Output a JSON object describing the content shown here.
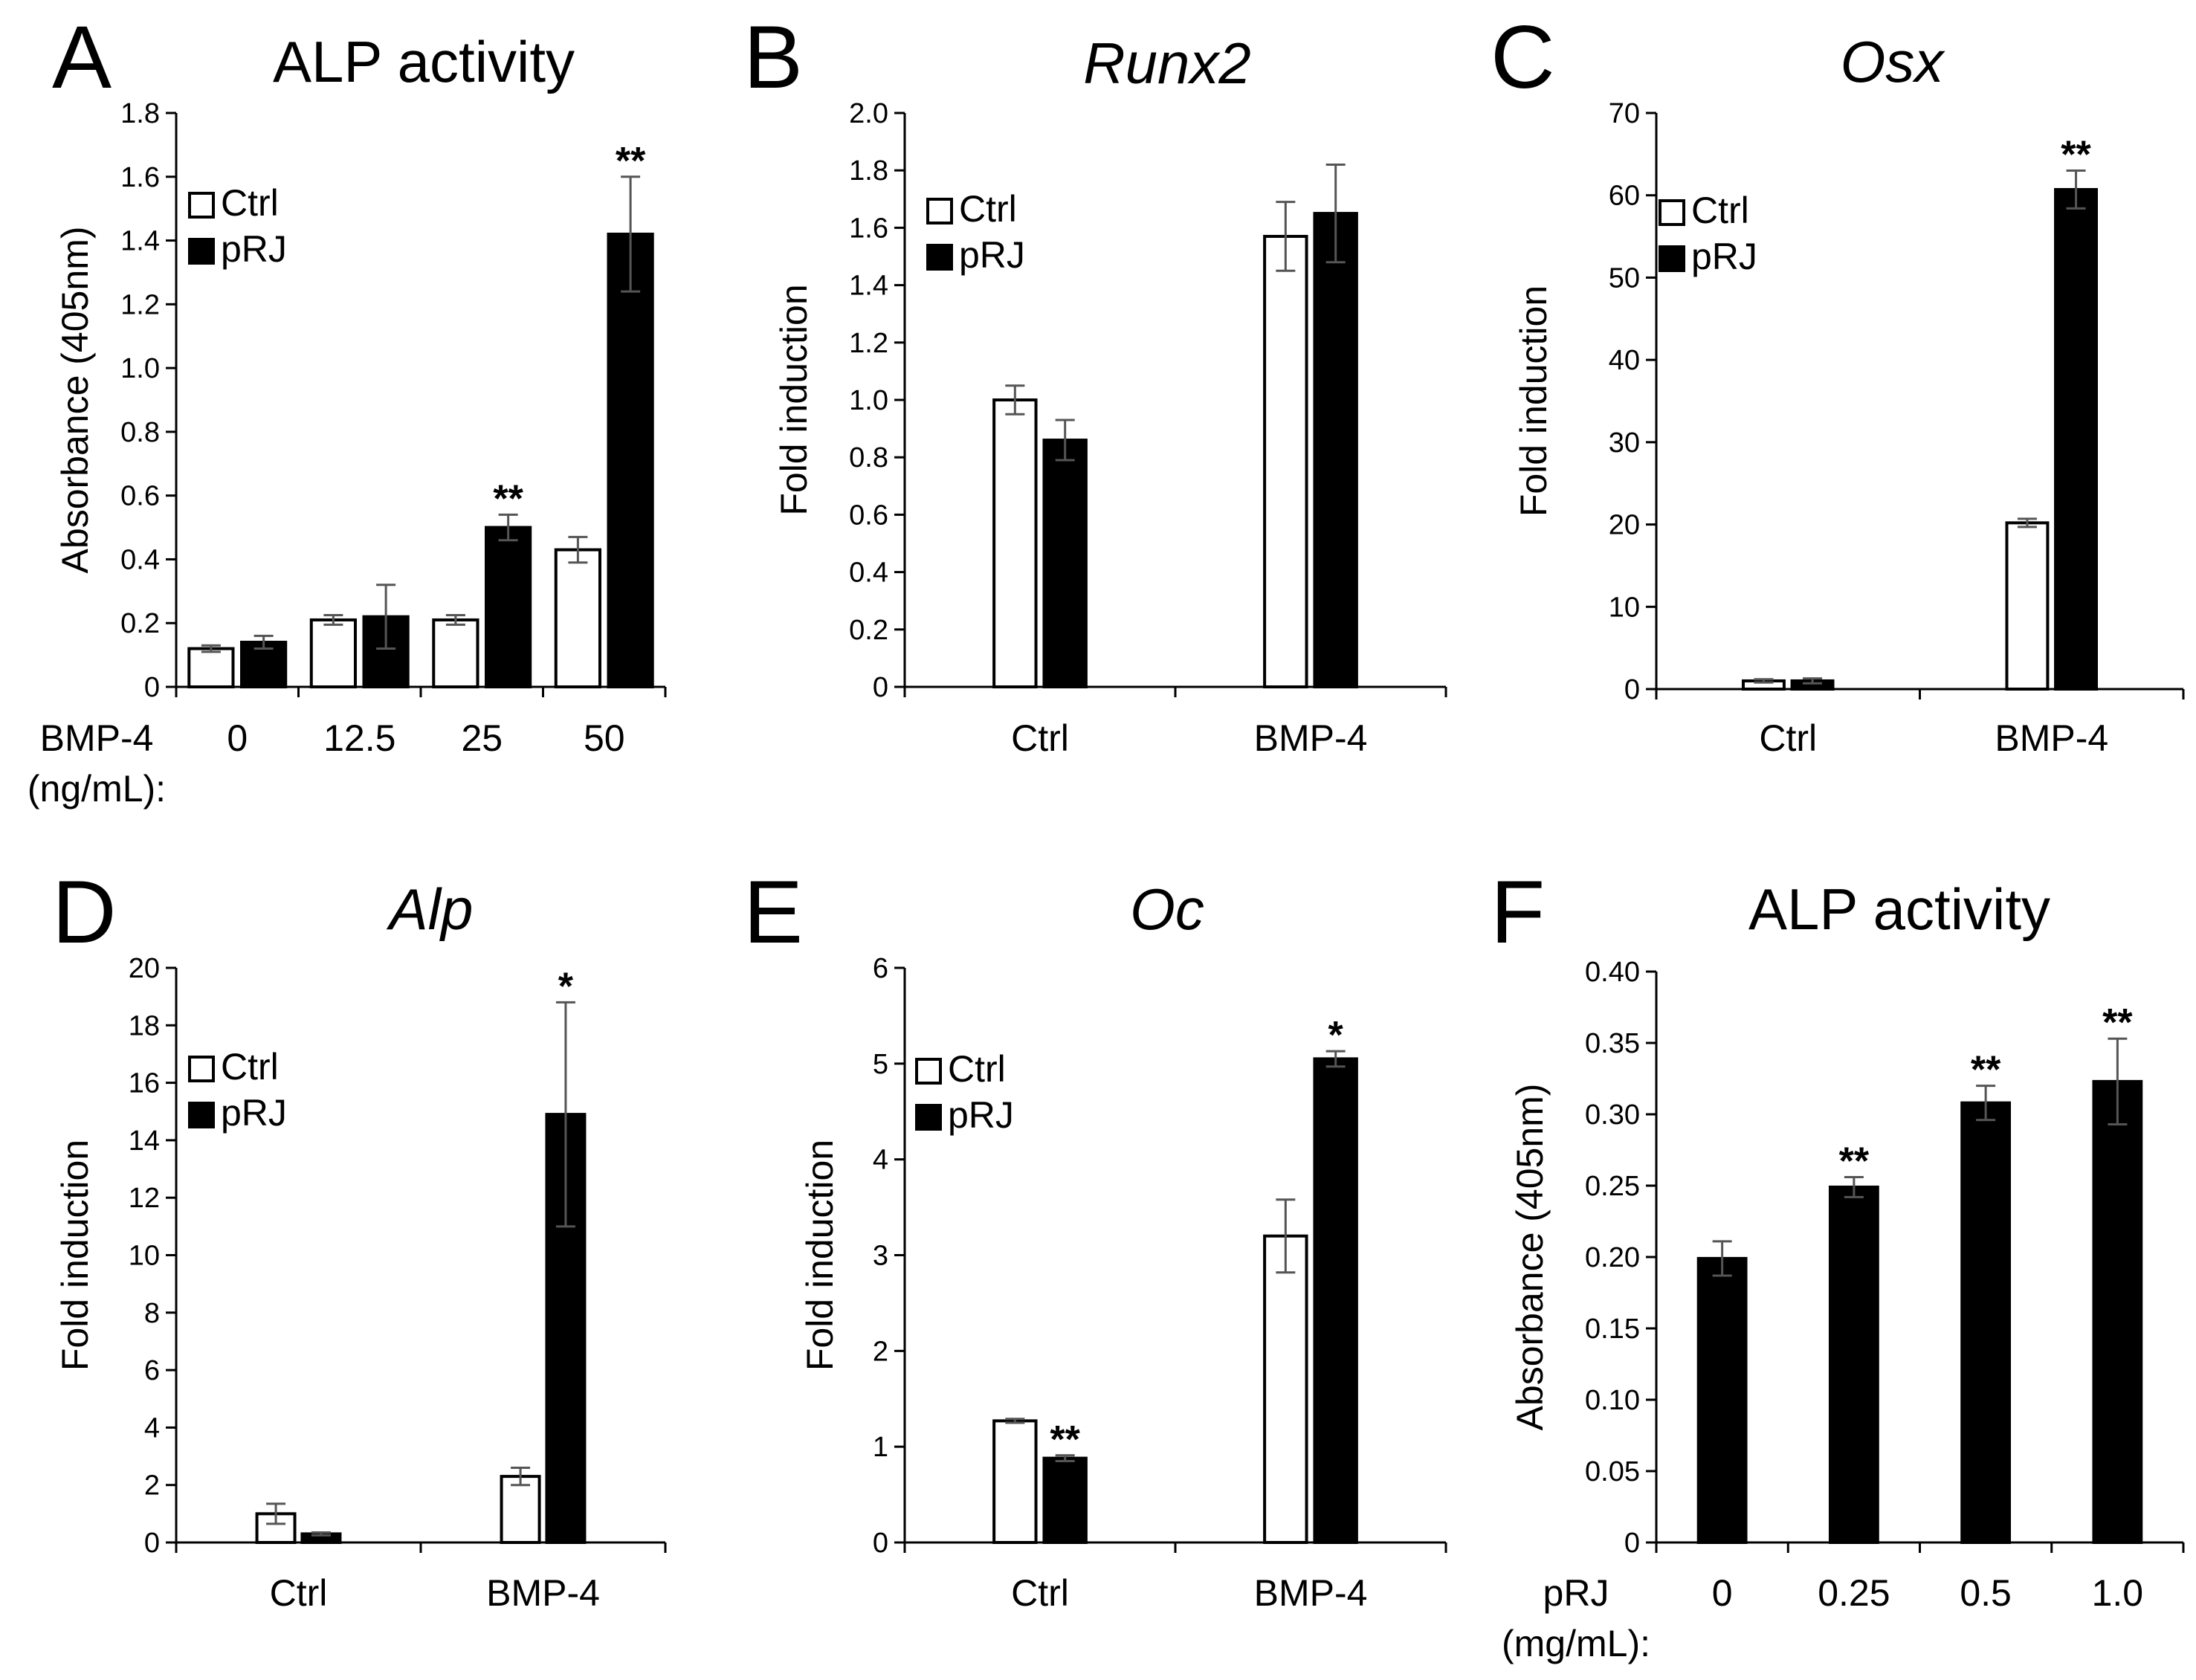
{
  "chart_data": [
    {
      "panel": "A",
      "type": "bar",
      "title": "ALP activity",
      "title_italic": false,
      "ylabel": "Absorbance (405nm)",
      "ylim": [
        0,
        1.8
      ],
      "yticks": [
        "0",
        "0.2",
        "0.4",
        "0.6",
        "0.8",
        "1.0",
        "1.2",
        "1.4",
        "1.6",
        "1.8"
      ],
      "xlabel": [
        "BMP-4",
        "(ng/mL):"
      ],
      "categories": [
        "0",
        "12.5",
        "25",
        "50"
      ],
      "legend": {
        "position": "top-left",
        "entries": [
          "Ctrl",
          "pRJ"
        ]
      },
      "series": [
        {
          "name": "Ctrl",
          "fill": "#ffffff",
          "values": [
            0.12,
            0.21,
            0.21,
            0.43
          ],
          "errors": [
            0.01,
            0.015,
            0.015,
            0.04
          ],
          "significance": [
            "",
            "",
            "",
            ""
          ]
        },
        {
          "name": "pRJ",
          "fill": "#000000",
          "values": [
            0.14,
            0.22,
            0.5,
            1.42
          ],
          "errors": [
            0.02,
            0.1,
            0.04,
            0.18
          ],
          "significance": [
            "",
            "",
            "**",
            "**"
          ]
        }
      ]
    },
    {
      "panel": "B",
      "type": "bar",
      "title": "Runx2",
      "title_italic": true,
      "ylabel": "Fold induction",
      "ylim": [
        0,
        2.0
      ],
      "yticks": [
        "0",
        "0.2",
        "0.4",
        "0.6",
        "0.8",
        "1.0",
        "1.2",
        "1.4",
        "1.6",
        "1.8",
        "2.0"
      ],
      "xlabel": [],
      "categories": [
        "Ctrl",
        "BMP-4"
      ],
      "legend": {
        "position": "top-left",
        "entries": [
          "Ctrl",
          "pRJ"
        ]
      },
      "series": [
        {
          "name": "Ctrl",
          "fill": "#ffffff",
          "values": [
            1.0,
            1.57
          ],
          "errors": [
            0.05,
            0.12
          ],
          "significance": [
            "",
            ""
          ]
        },
        {
          "name": "pRJ",
          "fill": "#000000",
          "values": [
            0.86,
            1.65
          ],
          "errors": [
            0.07,
            0.17
          ],
          "significance": [
            "",
            ""
          ]
        }
      ]
    },
    {
      "panel": "C",
      "type": "bar",
      "title": "Osx",
      "title_italic": true,
      "ylabel": "Fold induction",
      "ylim": [
        0,
        70
      ],
      "yticks": [
        "0",
        "10",
        "20",
        "30",
        "40",
        "50",
        "60",
        "70"
      ],
      "xlabel": [],
      "categories": [
        "Ctrl",
        "BMP-4"
      ],
      "legend": {
        "position": "top-left",
        "entries": [
          "Ctrl",
          "pRJ"
        ]
      },
      "series": [
        {
          "name": "Ctrl",
          "fill": "#ffffff",
          "values": [
            1.0,
            20.2
          ],
          "errors": [
            0.2,
            0.5
          ],
          "significance": [
            "",
            ""
          ]
        },
        {
          "name": "pRJ",
          "fill": "#000000",
          "values": [
            1.0,
            60.7
          ],
          "errors": [
            0.3,
            2.3
          ],
          "significance": [
            "",
            "**"
          ]
        }
      ]
    },
    {
      "panel": "D",
      "type": "bar",
      "title": "Alp",
      "title_italic": true,
      "ylabel": "Fold induction",
      "ylim": [
        0,
        20
      ],
      "yticks": [
        "0",
        "2",
        "4",
        "6",
        "8",
        "10",
        "12",
        "14",
        "16",
        "18",
        "20"
      ],
      "xlabel": [],
      "categories": [
        "Ctrl",
        "BMP-4"
      ],
      "legend": {
        "position": "top-left",
        "entries": [
          "Ctrl",
          "pRJ"
        ]
      },
      "series": [
        {
          "name": "Ctrl",
          "fill": "#ffffff",
          "values": [
            1.0,
            2.3
          ],
          "errors": [
            0.35,
            0.3
          ],
          "significance": [
            "",
            ""
          ]
        },
        {
          "name": "pRJ",
          "fill": "#000000",
          "values": [
            0.3,
            14.9
          ],
          "errors": [
            0.05,
            3.9
          ],
          "significance": [
            "",
            "*"
          ]
        }
      ]
    },
    {
      "panel": "E",
      "type": "bar",
      "title": "Oc",
      "title_italic": true,
      "ylabel": "Fold induction",
      "ylim": [
        0,
        6
      ],
      "yticks": [
        "0",
        "1",
        "2",
        "3",
        "4",
        "5",
        "6"
      ],
      "xlabel": [],
      "categories": [
        "Ctrl",
        "BMP-4"
      ],
      "legend": {
        "position": "top-left",
        "entries": [
          "Ctrl",
          "pRJ"
        ]
      },
      "series": [
        {
          "name": "Ctrl",
          "fill": "#ffffff",
          "values": [
            1.27,
            3.2
          ],
          "errors": [
            0.02,
            0.38
          ],
          "significance": [
            "",
            ""
          ]
        },
        {
          "name": "pRJ",
          "fill": "#000000",
          "values": [
            0.88,
            5.05
          ],
          "errors": [
            0.03,
            0.08
          ],
          "significance": [
            "**",
            "*"
          ]
        }
      ]
    },
    {
      "panel": "F",
      "type": "bar",
      "title": "ALP activity",
      "title_italic": false,
      "ylabel": "Absorbance (405nm)",
      "ylim": [
        0,
        0.4
      ],
      "yticks": [
        "0",
        "0.05",
        "0.10",
        "0.15",
        "0.20",
        "0.25",
        "0.30",
        "0.35",
        "0.40"
      ],
      "xlabel": [
        "pRJ",
        "(mg/mL):"
      ],
      "categories": [
        "0",
        "0.25",
        "0.5",
        "1.0"
      ],
      "legend": null,
      "series": [
        {
          "name": "pRJ",
          "fill": "#000000",
          "values": [
            0.199,
            0.249,
            0.308,
            0.323
          ],
          "errors": [
            0.012,
            0.007,
            0.012,
            0.03
          ],
          "significance": [
            "",
            "**",
            "**",
            "**"
          ]
        }
      ]
    }
  ]
}
